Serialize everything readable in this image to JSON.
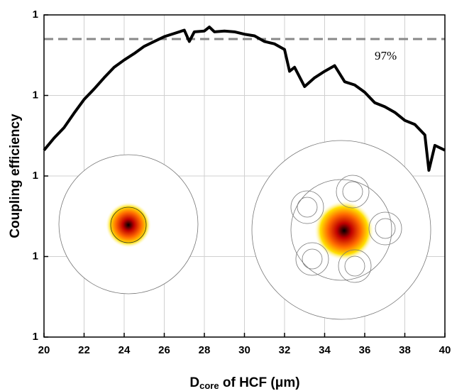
{
  "chart_data": {
    "type": "line",
    "y_label": "Coupling efficiency",
    "x_label": {
      "main": "D",
      "sub": "core",
      "rest": " of HCF (μm)"
    },
    "x": [
      20,
      20.5,
      21,
      21.5,
      22,
      22.5,
      23,
      23.5,
      24,
      24.5,
      25,
      25.5,
      26,
      26.5,
      27,
      27.25,
      27.5,
      28,
      28.25,
      28.5,
      29,
      29.5,
      30,
      30.5,
      31,
      31.5,
      32,
      32.25,
      32.5,
      33,
      33.5,
      34,
      34.5,
      35,
      35.5,
      36,
      36.5,
      37,
      37.5,
      38,
      38.5,
      39,
      39.2,
      39.5,
      40
    ],
    "series": [
      {
        "name": "Coupling efficiency",
        "color": "#000000",
        "values": [
          0.832,
          0.847,
          0.86,
          0.878,
          0.895,
          0.908,
          0.922,
          0.935,
          0.944,
          0.952,
          0.961,
          0.967,
          0.973,
          0.977,
          0.981,
          0.967,
          0.979,
          0.98,
          0.985,
          0.979,
          0.98,
          0.979,
          0.976,
          0.974,
          0.967,
          0.964,
          0.957,
          0.93,
          0.935,
          0.911,
          0.922,
          0.93,
          0.937,
          0.917,
          0.913,
          0.904,
          0.891,
          0.886,
          0.879,
          0.869,
          0.864,
          0.851,
          0.807,
          0.838,
          0.832
        ]
      }
    ],
    "reference_line": {
      "value": 0.97,
      "label": "97%",
      "color": "#888888"
    },
    "xlim": [
      20,
      40
    ],
    "xticks": [
      20,
      22,
      24,
      26,
      28,
      30,
      32,
      34,
      36,
      38,
      40
    ],
    "ylim": [
      0.6,
      1.0
    ],
    "yticks": [
      {
        "value": 0.6,
        "label": "1"
      },
      {
        "value": 0.7,
        "label": "1"
      },
      {
        "value": 0.8,
        "label": "1"
      },
      {
        "value": 0.9,
        "label": "1"
      },
      {
        "value": 1.0,
        "label": "1"
      }
    ],
    "grid": true
  }
}
